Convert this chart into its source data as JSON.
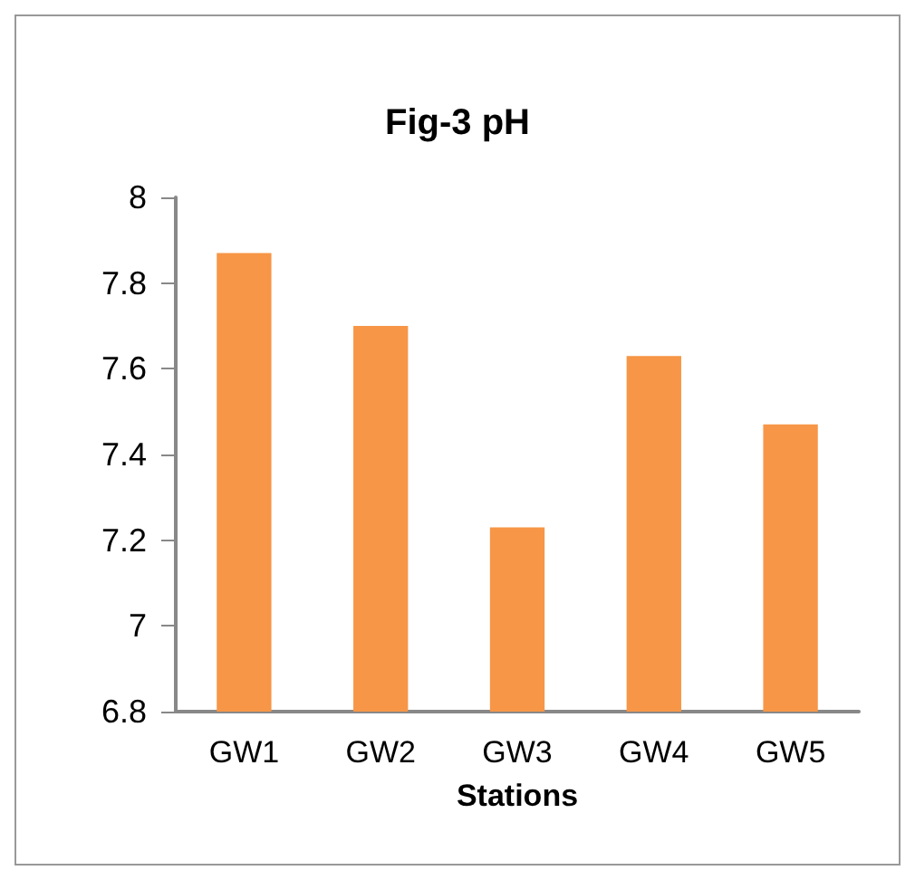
{
  "chart_data": {
    "type": "bar",
    "title": "Fig-3 pH",
    "xlabel": "Stations",
    "categories": [
      "GW1",
      "GW2",
      "GW3",
      "GW4",
      "GW5"
    ],
    "values": [
      7.87,
      7.7,
      7.23,
      7.63,
      7.47
    ],
    "color": "#f79646",
    "ylim": [
      6.8,
      8
    ],
    "yticks": [
      6.8,
      7,
      7.2,
      7.4,
      7.6,
      7.8,
      8
    ],
    "grid": false
  }
}
